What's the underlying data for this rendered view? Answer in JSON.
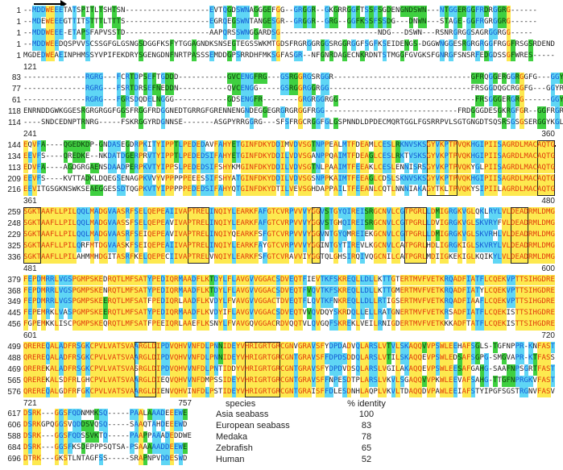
{
  "colors": {
    "identical_bg": "#fde94f",
    "identical_text": "#e23a0b",
    "conserved_bg": "#5fd6f5",
    "conserved_text": "#1459d4",
    "similar_bg": "#3fd040"
  },
  "blocks": [
    {
      "start_label": "",
      "end_label": "",
      "rows": [
        {
          "start": "1",
          "seq": "--MDDWEEETATSPITLTSHTSN-------------------EVTQGDSWNAGGGEFGG--GRGGR--GKGRRGGFTSSFSGDENGNDSWN---NTGGERGGFRDRGGRG------"
        },
        {
          "start": "1",
          "seq": "--MDEWEEEGTTITSTTTLTTTS-------------------EGRQEGSWNTANGESGR--GRGGR--GRG--GGFKSSFSSDG---DNWN---STAGE-GGFRGRGGRG------"
        },
        {
          "start": "1",
          "seq": "--MDDWEEE-ETAPSFAPVSSTD-------------------AAPQRSSWNGGARDSG----------------------NDG---DSWN---RSNRGRGGSAGRGGRGG-----"
        },
        {
          "start": "1",
          "seq": "--MDDWEEDQSPVVSCSSGFGLGSNGSDGGFKSFYTGGAGNDKSNSEGTEGSSWKMTGDSFRGRGGRGGSRGGRGGFSGFKSEIDENGS-DGGWNGGESRGRGRGGFRGGFRSGSRDEND"
        },
        {
          "start": "1",
          "seq": "MGDEDWEAEINPHMSSYVPIFEKDRYSGENGDNFNRTPASSSEMDDGPSRRDHFMKSGFASGR--NFGNRDAGECNKRDNTSTMGGFGVGKSFGNRGFSNSRFEDGDSSGFWRES-----"
        }
      ]
    },
    {
      "start_label": "121",
      "end_label": "240",
      "rows": [
        {
          "start": "83",
          "seq": "--------------RGRG---FCRTDPSEFTGDDD-----------GVCENGFRG---GSRGGRGSRGGR-------------------------------GFRQGGERGGRGGFG---GGYRGKD"
        },
        {
          "start": "77",
          "seq": "--------------RGRG---FSRTDRSEFNEDDN-----------QVCENGG-----GSRGGRGGRGG--------------------------------FRSGGDQGCRGGFG---GGYRGKD"
        },
        {
          "start": "61",
          "seq": "--------------RGRG---FGRSDQDELNGGG------------GDSENGFR--------GRGRGGRGG-------------------------------FRSGGGERGRG------GGYRGRD"
        },
        {
          "start": "118",
          "seq": "ENRNDDGWKGGESRGRGRGGFGGSFRGGFRDGGNEDTGRRGFGRENNENGNDEGGEGRGRGRGGFRGG------------------------------FRDGGGDESGKRGFGR--GGFRGRN"
        },
        {
          "start": "114",
          "seq": "----SNDCEDNPTRNRG-----FSKRGGYRDGNNSE-------ASGPYRRGGRG---SFSFRGCRGGFGLGSPNNDLDPDECMQRTGGLFGSRRPVLSGTGNGDTSQSRSGSGSERGGYKGLN"
        }
      ]
    },
    {
      "start_label": "241",
      "end_label": "360",
      "rows": [
        {
          "start": "144",
          "seq": "EQVFA----QGEDKDP-GNDASEGDRPKITYIPPTLPEDEDAVFAHYETGINFDKYDDIMVDVSGTNPPEALMTFDEAMLCESLRKNVSKSGYVKPTPVQKHGIPIISAGRDLMACAQTG"
        },
        {
          "start": "134",
          "seq": "EEVFS----QREDKE--NKDATDGERPRVTYIPPTLPEDEDSIFAHYETGINFDKYDDILVDVSGANPPQAIMTFDEAGLCESLRKTVSKSGYVKPTPVQKHGIPIISAGRDLMACAQTG"
        },
        {
          "start": "113",
          "seq": "EDVFA----AGDGRGAENSDAADPERPKVTYIPPSLPEDEDSIFSHYKMGINFDKYDDILVDVSGTNLPAAIMTFEEAKLCESLENNISRSGYVKPTPVQKYGLPIISAGRDLMACAQTG"
        },
        {
          "start": "209",
          "seq": "EEVFS----KVTTADKLDQEGSENAGPKVVYVPPPPPEEESSIFSHYATGINFDKYDDILVDVSGSNPPKAIMTFEEAGLCDSLSKNVSKSGYVKPTPVQKHGIPIISAGRDLMACAQTG"
        },
        {
          "start": "216",
          "seq": "EEVITGSGKNSWKSEAEGGESSDTQGPKVTYIPPPPPEDEDSIFAHYQTGINFDKYDTILVEVSGHDAPPAILTFEEANLCQTLNNNIAKAGYTKLTPVQKYSIPIILAGRDLMACAQTG"
        }
      ]
    },
    {
      "start_label": "361",
      "end_label": "480",
      "rows": [
        {
          "start": "259",
          "seq": "SGKTAAFLLPILQQLMADGVAASRFSELQEPEAIIVAPTRELINQIYLEARKFAFGTCVRPVVVYGGVSTGYQIREISRGCNVLCGTPGRLLDMIGRGKVGLQKLRYLVLDEADRMLDMG"
        },
        {
          "start": "248",
          "seq": "SGKTAAFLLPILQQLMADGVAASSFSELQEPEAVIVAPTRELINQIYLEARKFAFGTCVRPVVVYGGVSTGHQIREISRGCNVLCGTPGRLLDVIGRGKVGLSKVRYFVLDEADRMLDMG"
        },
        {
          "start": "229",
          "seq": "SGKTAAFLLPILQQLMADGVAASRFSEIQEPEAVIVAPTRELINQIYQEARKFSFGTCVRPVVVYGGVNTGYQMREIEKGCNVLCGTPGRLLDMIGRGKVGLSKVRHLVLDEADRMLDMG"
        },
        {
          "start": "325",
          "seq": "SGKTAAFLLPILQRFMTDGVAASKFSEIQEPEAIIVAPTRELINQIYLEARKFAYGTCVRPVVVYGGINTGYTIREVLKGCNVLCATPGRLHDLIGRGKIGLSKVRYLVLDEADRMLDMG"
        },
        {
          "start": "336",
          "seq": "SGKTAAFLLPILAHMMHDGITASRFKELQEPECIIVAPTRELVNQIYLEARKFSFGTCVRAVVIYGGTQLGHSIRQIVQGCNILCATPGRLMDIIGKEKIGLKQIKYLVLDEADRMLDMG"
        }
      ]
    },
    {
      "start_label": "481",
      "end_label": "600",
      "rows": [
        {
          "start": "379",
          "seq": "FEPDMRRLVGSPGMPSKEDRQTLMFSATYPEDIQRMAADFLKTDYLFLAVGVVGGACSDVEQTFIEVTKFSKREQLLDLLKTTGTERTMVFVETKRQADFIATFLCQEKVPTTSIHGDRE"
        },
        {
          "start": "368",
          "seq": "FEPDMRRLVGSPGMPSKENRQTLMFSATYPEDIQRMAADFLKTDYLFLAVGVVGGACSDVEQTFVQVTKFSKREQLLDLLKTTGMERTMVFVETKRQADFIATYLCQEKVPTTSIHGDRE"
        },
        {
          "start": "349",
          "seq": "FEPDMRRLVGSPGMPSKEERQTLMFSATFPEDIQRLAADFLKVDYLFVAVGVVGGACTDVEQTFLQVTKFNKREQLLDLLRTIGSERTMVFVETKRQADFIAAFLCQEKVPTTSIHGDRE"
        },
        {
          "start": "445",
          "seq": "FEPEMRKLVASPGMPSKEERQTLMFSATYPEDIQRMAADFLKVDYIFLAVGVVGGACSDVEQTVVQVDQYSKRDQLLELLRATGNERTMVFVETKRSADFIATFLCQEKISTTSIHGDRE"
        },
        {
          "start": "456",
          "seq": "FGPEMKKLISCPGMPSKEQRQTLMFSATFPEEIQRLAAEFLKSNYLFVAVGQVGGACRDVQQTVLQVGQFSKREKLVEILRNIGDERTMVFVETKKKADFTATFLCQEKISTTSIHGDRE"
        }
      ]
    },
    {
      "start_label": "601",
      "end_label": "720",
      "rows": [
        {
          "start": "499",
          "seq": "QREREQALADFRSGKCPVLVATSVAARGLDIPDVQHVVNFDLPNNIDEYVHRIGRTGRCGNVGRAVSFYDPDADVQLARSLVTVLSKAQQVVPSWLEEHAFSGLS-TGFNPPR-KNFAST"
        },
        {
          "start": "488",
          "seq": "QREREQALADFRSGKCPVLVATSVAARGLDIPDVQHVVNFDLPNNIDEYVHRIGRTGRCGNTGRAVSFFDPDSDDQLARSLVTILSKAQQEVPSWLEDSAFSGPG-SMGVAPR-KTFASS"
        },
        {
          "start": "469",
          "seq": "QREREKALADFRSGKCPVLVATSVASRGLDIPDVQHVVNFDLPNTIDDYVHRIGRTGRCGNTGRAVSFYDPDVDSQLARSLVGILAKAQQEVPSWLEESAFGAHG-SAAFNPSGRTFAST"
        },
        {
          "start": "565",
          "seq": "QREREKALSDFRLGHCPVLVATSVAARGLDIEQVQHVVNFDMPSSIDEYVHRIGRTGRCGNTGRAVSFFNPESDTPLARSLVKVLSGAQQVVPKWLEEVAFSAHG-TTGFNPRGKVFAST"
        },
        {
          "start": "576",
          "seq": "QREREQALGDFRFGKCPVLVATSVAARGLDIENVQHVINFDLPSTIDEYVHRIGRTGRCGNTGRAISFFDLESDNHLAQPLVKVLTDAQQDVPAWLEEIAFSTYIPGFSGSTRGNVFASV"
        }
      ]
    },
    {
      "start_label": "721",
      "end_label": "757",
      "rows": [
        {
          "start": "617",
          "seq": "DSRK---GGSFQDNMMKSQ-----PAALAAADEEEWE"
        },
        {
          "start": "606",
          "seq": "DSRKGPQGGSVQDDSVQSQ-----SAAQTAHDEEEWD"
        },
        {
          "start": "588",
          "seq": "DSRK---GGSFQDSSVKTQ-----PAAPPAAADEDDWE"
        },
        {
          "start": "684",
          "seq": "DSRK---GGSFKSDEPPPSQTSA-PSAAAAADDEEWE"
        },
        {
          "start": "696",
          "seq": "DTRK---GKSTLNTAGFSS-----SRAPNPVDDESWD"
        }
      ]
    }
  ],
  "identity_table": {
    "headers": {
      "species": "species",
      "identity": "% identity"
    },
    "rows": [
      {
        "species": "Asia seabass",
        "identity": "100"
      },
      {
        "species": "European seabass",
        "identity": "83"
      },
      {
        "species": "Medaka",
        "identity": "78"
      },
      {
        "species": "Zebrafish",
        "identity": "65"
      },
      {
        "species": "Human",
        "identity": "52"
      }
    ]
  }
}
